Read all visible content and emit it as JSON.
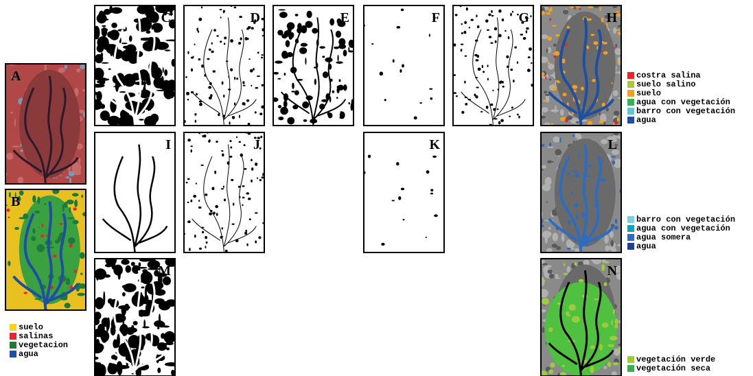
{
  "panels": [
    {
      "label": "A"
    },
    {
      "label": "B"
    },
    {
      "label": "C"
    },
    {
      "label": "D"
    },
    {
      "label": "E"
    },
    {
      "label": "F"
    },
    {
      "label": "G"
    },
    {
      "label": "H"
    },
    {
      "label": "I"
    },
    {
      "label": "J"
    },
    {
      "label": "K"
    },
    {
      "label": "L"
    },
    {
      "label": "M"
    },
    {
      "label": "N"
    }
  ],
  "legends": [
    {
      "items": [
        {
          "label": "suelo",
          "color": "#f5d320"
        },
        {
          "label": "salinas",
          "color": "#e8262a"
        },
        {
          "label": "vegetacion",
          "color": "#1e7a3c"
        },
        {
          "label": "agua",
          "color": "#1f4fa0"
        }
      ]
    },
    {
      "items": [
        {
          "label": "costra salina",
          "color": "#e8262a"
        },
        {
          "label": "suelo salino",
          "color": "#a6c83a"
        },
        {
          "label": "suelo",
          "color": "#f0a020"
        },
        {
          "label": "agua con vegetación",
          "color": "#2fb45a"
        },
        {
          "label": "barro con vegetación",
          "color": "#5cc8d8"
        },
        {
          "label": "agua",
          "color": "#1f4fa0"
        }
      ]
    },
    {
      "items": [
        {
          "label": "barro con vegetación",
          "color": "#7ad0dc"
        },
        {
          "label": "agua con vegetación",
          "color": "#18a0b8"
        },
        {
          "label": "agua somera",
          "color": "#2e6cc0"
        },
        {
          "label": "agua",
          "color": "#1f3f90"
        }
      ]
    },
    {
      "items": [
        {
          "label": "vegetación verde",
          "color": "#9ccc3c"
        },
        {
          "label": "vegetación seca",
          "color": "#38b050"
        }
      ]
    }
  ]
}
